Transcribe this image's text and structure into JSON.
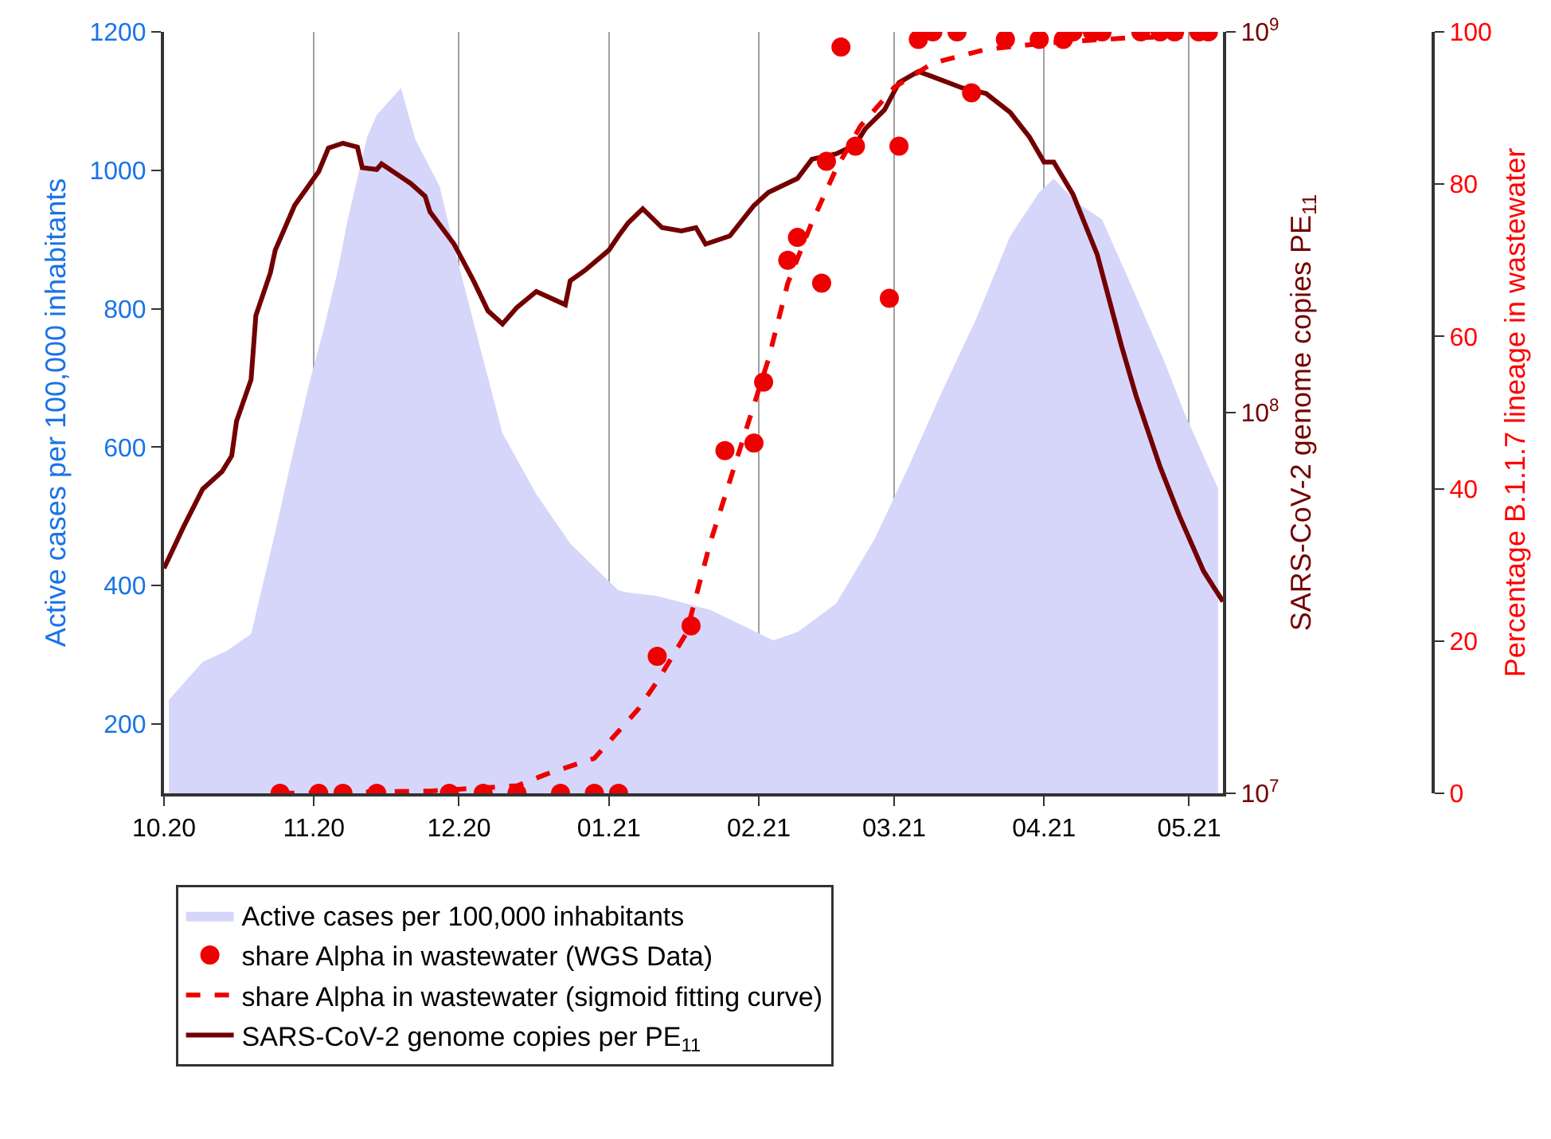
{
  "chart_data": {
    "type": "line",
    "xlim": [
      "2020-10-01",
      "2021-05-08"
    ],
    "xticks": [
      {
        "value": "2020-10-01",
        "label": "10.20"
      },
      {
        "value": "2020-11-01",
        "label": "11.20"
      },
      {
        "value": "2020-12-01",
        "label": "12.20"
      },
      {
        "value": "2021-01-01",
        "label": "01.21"
      },
      {
        "value": "2021-02-01",
        "label": "02.21"
      },
      {
        "value": "2021-03-01",
        "label": "03.21"
      },
      {
        "value": "2021-04-01",
        "label": "04.21"
      },
      {
        "value": "2021-05-01",
        "label": "05.21"
      }
    ],
    "ylabel": "Active cases per 100,000 inhabitants",
    "ylim": [
      100,
      1200
    ],
    "yticks": [
      200,
      400,
      600,
      800,
      1000,
      1200
    ],
    "y2label": "SARS-CoV-2 genome copies PE$_{11}$",
    "y2lim": [
      10000000,
      1000000000
    ],
    "y2ticks": [
      {
        "value": 10000000,
        "label": "10$^{7}$"
      },
      {
        "value": 100000000,
        "label": "10$^{8}$"
      },
      {
        "value": 1000000000,
        "label": "10$^{9}$"
      }
    ],
    "log": "y2",
    "y3label": "Percentage B.1.1.7 lineage in wastewater",
    "y3lim": [
      0,
      100
    ],
    "y3ticks": [
      0,
      20,
      40,
      60,
      80,
      100
    ],
    "grid": "x",
    "legend": "bottom",
    "series": [
      {
        "name": "Active cases per 100,000 inhabitants",
        "type": "area",
        "color": "#d6d6fa",
        "axis": "y",
        "x": [
          "2020-10-02",
          "2020-10-09",
          "2020-10-14",
          "2020-10-19",
          "2020-10-24",
          "2020-10-27",
          "2020-10-31",
          "2020-11-03",
          "2020-11-06",
          "2020-11-08",
          "2020-11-12",
          "2020-11-14",
          "2020-11-19",
          "2020-11-22",
          "2020-11-27",
          "2020-11-30",
          "2020-12-05",
          "2020-12-10",
          "2020-12-17",
          "2020-12-24",
          "2020-12-30",
          "2021-01-03",
          "2021-01-05",
          "2021-01-11",
          "2021-01-22",
          "2021-02-04",
          "2021-02-09",
          "2021-02-17",
          "2021-02-25",
          "2021-03-04",
          "2021-03-11",
          "2021-03-18",
          "2021-03-25",
          "2021-03-31",
          "2021-04-03",
          "2021-04-08",
          "2021-04-13",
          "2021-04-19",
          "2021-04-26",
          "2021-04-30",
          "2021-05-07"
        ],
        "values": [
          235,
          290,
          306,
          330,
          477,
          571,
          691,
          770,
          857,
          929,
          1048,
          1080,
          1119,
          1044,
          977,
          889,
          754,
          620,
          532,
          461,
          420,
          393,
          390,
          385,
          365,
          321,
          333,
          374,
          468,
          572,
          682,
          786,
          905,
          968,
          988,
          952,
          929,
          834,
          722,
          650,
          540
        ]
      },
      {
        "name": "share Alpha in wastewater (WGS Data)",
        "type": "scatter",
        "color": "#ee0000",
        "axis": "y3",
        "marker": "circle",
        "x": [
          "2020-10-25",
          "2020-11-02",
          "2020-11-07",
          "2020-11-14",
          "2020-11-29",
          "2020-12-06",
          "2020-12-13",
          "2020-12-22",
          "2020-12-29",
          "2021-01-03",
          "2021-01-11",
          "2021-01-18",
          "2021-01-25",
          "2021-01-31",
          "2021-02-02",
          "2021-02-07",
          "2021-02-09",
          "2021-02-14",
          "2021-02-15",
          "2021-02-18",
          "2021-02-21",
          "2021-02-28",
          "2021-03-02",
          "2021-03-06",
          "2021-03-09",
          "2021-03-14",
          "2021-03-17",
          "2021-03-24",
          "2021-03-31",
          "2021-04-05",
          "2021-04-07",
          "2021-04-11",
          "2021-04-13",
          "2021-04-21",
          "2021-04-25",
          "2021-04-28",
          "2021-05-03",
          "2021-05-05"
        ],
        "values": [
          0,
          0,
          0,
          0,
          0,
          0,
          0,
          0,
          0,
          0,
          18,
          22,
          45,
          46,
          54,
          70,
          73,
          67,
          83,
          98,
          85,
          65,
          85,
          99,
          100,
          100,
          92,
          99,
          99,
          99,
          100,
          100,
          100,
          100,
          100,
          100,
          100,
          100
        ]
      },
      {
        "name": "share Alpha in wastewater (sigmoid fitting curve)",
        "color": "#ee0000",
        "axis": "y3",
        "line_style": "dashed",
        "x": [
          "2020-10-25",
          "2020-11-25",
          "2020-12-13",
          "2020-12-19",
          "2020-12-29",
          "2021-01-07",
          "2021-01-11",
          "2021-01-17",
          "2021-01-22",
          "2021-01-28",
          "2021-02-03",
          "2021-02-07",
          "2021-02-12",
          "2021-02-17",
          "2021-02-22",
          "2021-03-01",
          "2021-03-09",
          "2021-03-20",
          "2021-04-01",
          "2021-04-18",
          "2021-05-05"
        ],
        "values": [
          0,
          0.3,
          1,
          2.5,
          4.6,
          11,
          14.7,
          21,
          33,
          45,
          57,
          67,
          75,
          82,
          87.6,
          92.7,
          95.9,
          97.7,
          98.5,
          99.2,
          99.5
        ]
      },
      {
        "name": "SARS-CoV-2 genome copies per PE$_{11}$",
        "color": "#730000",
        "axis": "y2",
        "line_style": "solid",
        "x": [
          "2020-10-01",
          "2020-10-05",
          "2020-10-09",
          "2020-10-13",
          "2020-10-15",
          "2020-10-16",
          "2020-10-19",
          "2020-10-20",
          "2020-10-23",
          "2020-10-24",
          "2020-10-28",
          "2020-11-02",
          "2020-11-04",
          "2020-11-07",
          "2020-11-10",
          "2020-11-11",
          "2020-11-14",
          "2020-11-15",
          "2020-11-21",
          "2020-11-24",
          "2020-11-25",
          "2020-11-30",
          "2020-12-04",
          "2020-12-07",
          "2020-12-10",
          "2020-12-13",
          "2020-12-17",
          "2020-12-23",
          "2020-12-24",
          "2020-12-27",
          "2021-01-01",
          "2021-01-03",
          "2021-01-05",
          "2021-01-08",
          "2021-01-12",
          "2021-01-16",
          "2021-01-19",
          "2021-01-21",
          "2021-01-26",
          "2021-01-31",
          "2021-02-03",
          "2021-02-09",
          "2021-02-12",
          "2021-02-17",
          "2021-02-21",
          "2021-02-23",
          "2021-02-27",
          "2021-03-02",
          "2021-03-06",
          "2021-03-09",
          "2021-03-15",
          "2021-03-20",
          "2021-03-25",
          "2021-03-29",
          "2021-04-01",
          "2021-04-03",
          "2021-04-07",
          "2021-04-12",
          "2021-04-17",
          "2021-04-20",
          "2021-04-25",
          "2021-04-29",
          "2021-05-04",
          "2021-05-08"
        ],
        "values": [
          39000000,
          50000000,
          63000000,
          70000000,
          77000000,
          95000000,
          122000000,
          180000000,
          233000000,
          267000000,
          350000000,
          430000000,
          495000000,
          510000000,
          498000000,
          440000000,
          435000000,
          450000000,
          400000000,
          370000000,
          337000000,
          277000000,
          222000000,
          185000000,
          171000000,
          189000000,
          208000000,
          192000000,
          222000000,
          236000000,
          267000000,
          291000000,
          315000000,
          343000000,
          306000000,
          300000000,
          306000000,
          277000000,
          291000000,
          350000000,
          379000000,
          412000000,
          463000000,
          478000000,
          505000000,
          556000000,
          624000000,
          736000000,
          787000000,
          762000000,
          713000000,
          689000000,
          614000000,
          529000000,
          455000000,
          455000000,
          374000000,
          260000000,
          150000000,
          111000000,
          72000000,
          53500000,
          38300000,
          31900000
        ]
      }
    ]
  }
}
